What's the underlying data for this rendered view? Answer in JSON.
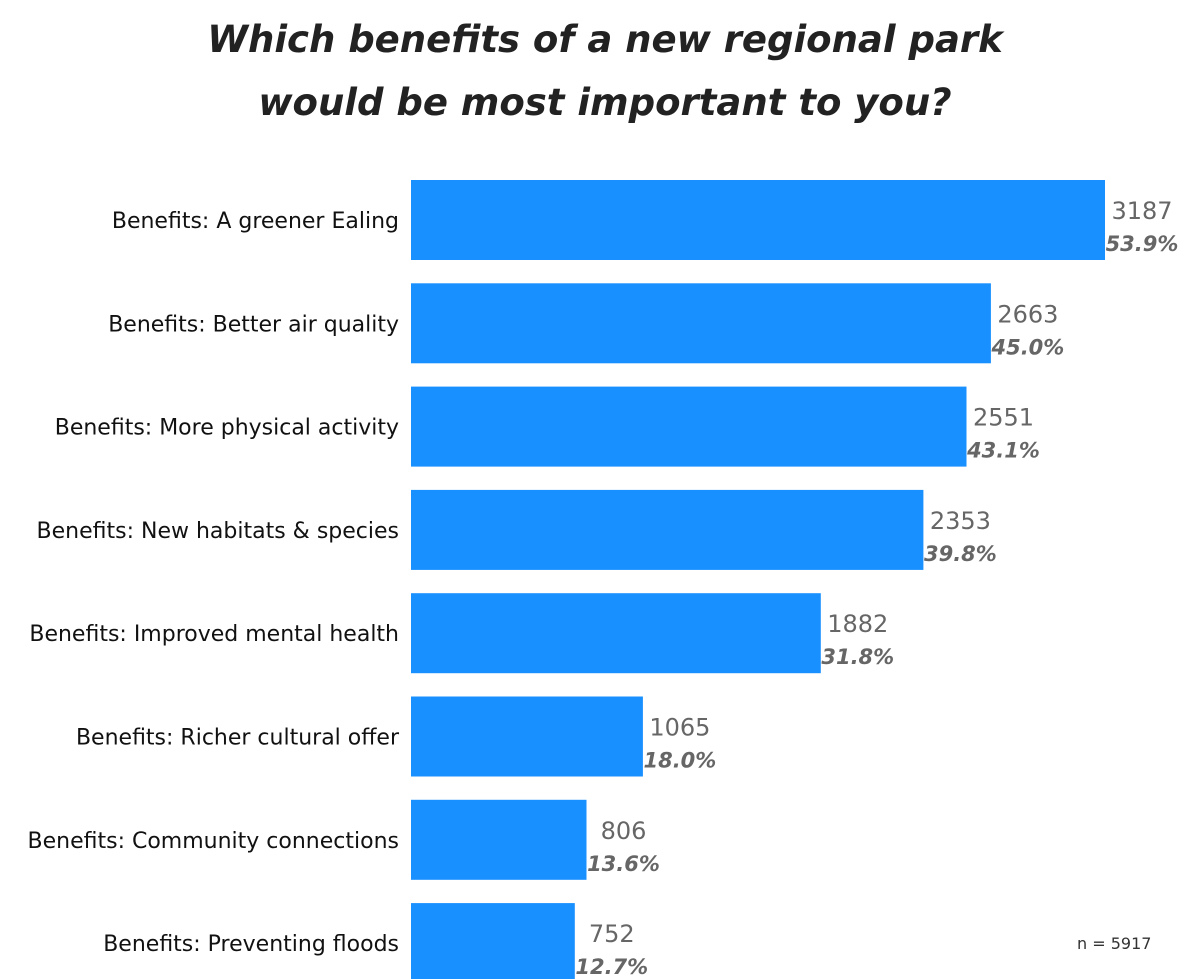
{
  "chart_data": {
    "type": "bar",
    "orientation": "horizontal",
    "title": "Which benefits of a new regional park would be most important to you?",
    "title_lines": [
      "Which benefits of a new regional park",
      "would be most important to you?"
    ],
    "categories": [
      "Benefits: A greener Ealing",
      "Benefits: Better air quality",
      "Benefits: More physical activity",
      "Benefits: New habitats & species",
      "Benefits: Improved mental health",
      "Benefits: Richer cultural offer",
      "Benefits: Community connections",
      "Benefits: Preventing floods"
    ],
    "values": [
      3187,
      2663,
      2551,
      2353,
      1882,
      1065,
      806,
      752
    ],
    "value_labels": [
      "3187",
      "2663",
      "2551",
      "2353",
      "1882",
      "1065",
      "806",
      "752"
    ],
    "percent_labels": [
      "53.9%",
      "45.0%",
      "43.1%",
      "39.8%",
      "31.8%",
      "18.0%",
      "13.6%",
      "12.7%"
    ],
    "xlim": [
      0,
      3187
    ],
    "grid": false,
    "legend": "none",
    "bar_color": "#1890ff",
    "note": "n = 5917"
  }
}
